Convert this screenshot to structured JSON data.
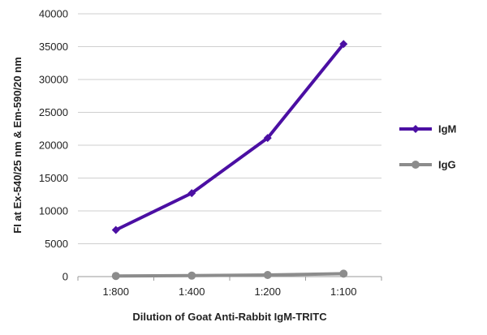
{
  "chart_data": {
    "type": "line",
    "title": "",
    "xlabel": "Dilution of Goat Anti-Rabbit IgM-TRITC",
    "ylabel": "FI at Ex-540/25 nm & Em-590/20 nm",
    "categories": [
      "1:800",
      "1:400",
      "1:200",
      "1:100"
    ],
    "ylim": [
      0,
      40000
    ],
    "yticks": [
      0,
      5000,
      10000,
      15000,
      20000,
      25000,
      30000,
      35000,
      40000
    ],
    "grid": true,
    "legend_position": "right",
    "series": [
      {
        "name": "IgM",
        "values": [
          7100,
          12700,
          21100,
          35400
        ],
        "color": "#4b0fa3",
        "marker": "diamond"
      },
      {
        "name": "IgG",
        "values": [
          100,
          150,
          250,
          450
        ],
        "color": "#8c8c8c",
        "marker": "circle"
      }
    ]
  }
}
